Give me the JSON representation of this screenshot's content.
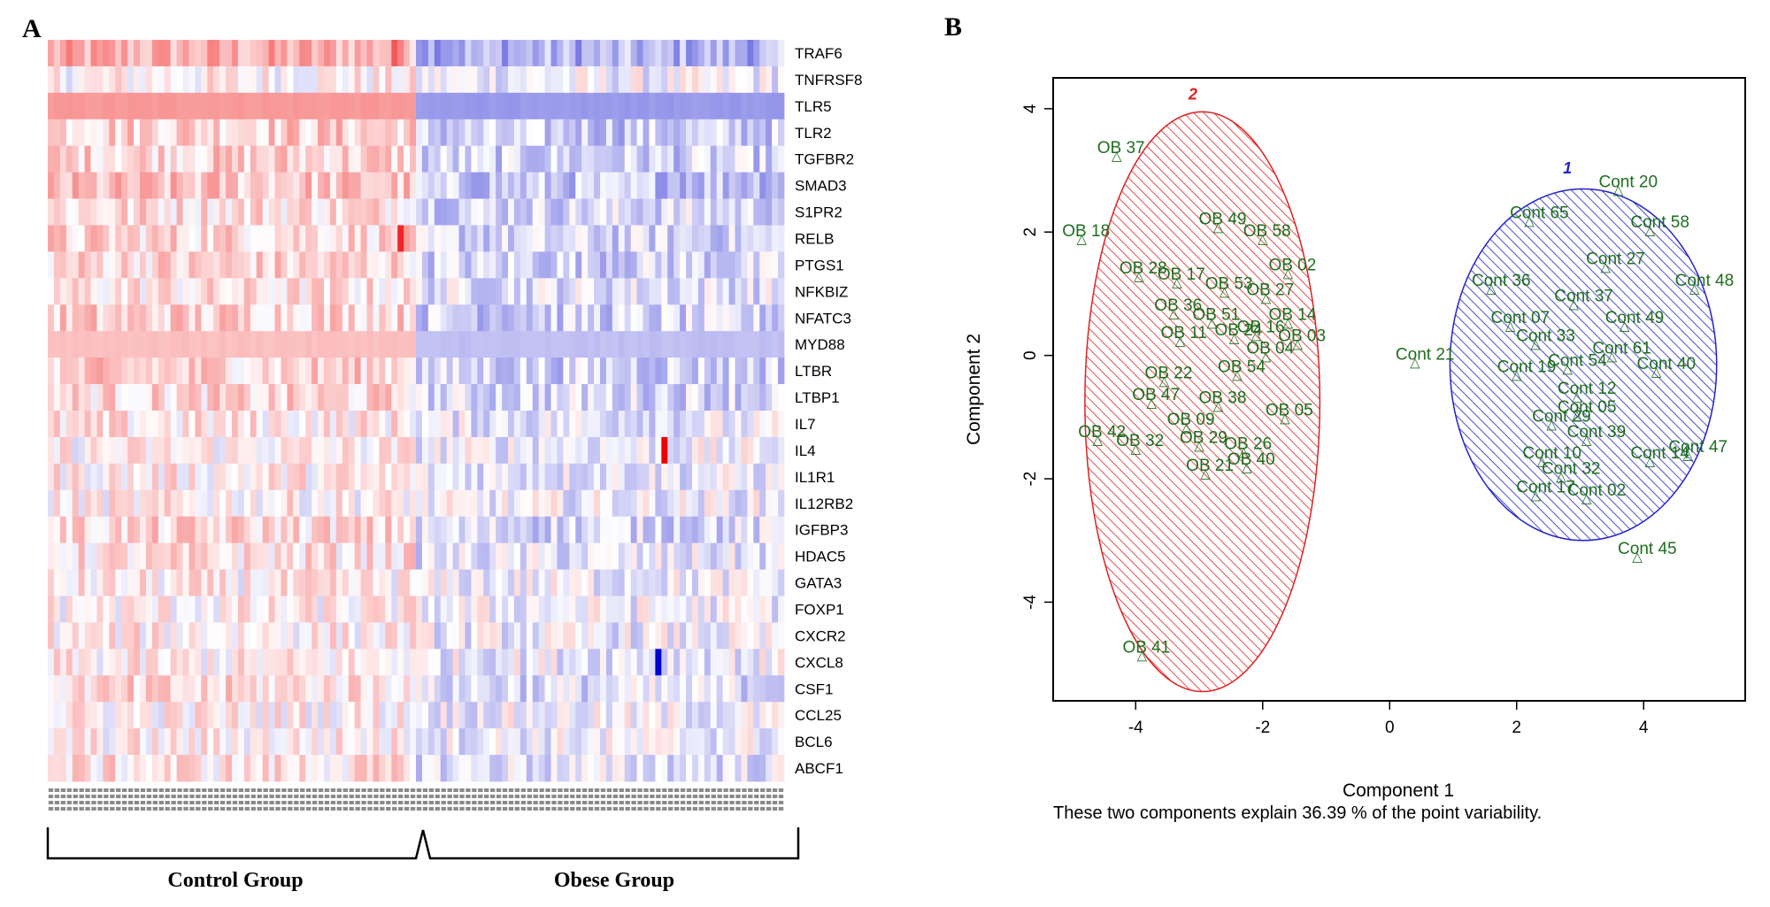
{
  "panels": {
    "a_letter": "A",
    "b_letter": "B"
  },
  "chart_data": [
    {
      "type": "heatmap",
      "panel": "A",
      "genes": [
        "TRAF6",
        "TNFRSF8",
        "TLR5",
        "TLR2",
        "TGFBR2",
        "SMAD3",
        "S1PR2",
        "RELB",
        "PTGS1",
        "NFKBIZ",
        "NFATC3",
        "MYD88",
        "LTBR",
        "LTBP1",
        "IL7",
        "IL4",
        "IL1R1",
        "IL12RB2",
        "IGFBP3",
        "HDAC5",
        "GATA3",
        "FOXP1",
        "CXCR2",
        "CXCL8",
        "CSF1",
        "CCL25",
        "BCL6",
        "ABCF1"
      ],
      "groups": [
        {
          "name": "Control Group",
          "n_samples": 60
        },
        {
          "name": "Obese Group",
          "n_samples": 60
        }
      ],
      "color_scale": {
        "low": "#0000cc",
        "mid": "#ffffff",
        "high": "#ee0000"
      },
      "row_trend": [
        0.3,
        0.05,
        0.4,
        0.2,
        0.18,
        0.22,
        0.14,
        0.16,
        0.16,
        0.1,
        0.18,
        0.25,
        0.17,
        0.14,
        0.08,
        0.05,
        0.07,
        0.05,
        0.14,
        0.1,
        0.05,
        0.04,
        0.06,
        0.05,
        0.12,
        0.05,
        0.05,
        0.1
      ],
      "highlights": [
        {
          "gene": "IL4",
          "group": "Obese Group",
          "sample": 40,
          "value": 1.0
        },
        {
          "gene": "CXCL8",
          "group": "Obese Group",
          "sample": 39,
          "value": -1.0
        },
        {
          "gene": "RELB",
          "group": "Control Group",
          "sample": 57,
          "value": 0.85
        },
        {
          "gene": "TRAF6",
          "group": "Control Group",
          "sample": 56,
          "value": 0.65
        }
      ]
    },
    {
      "type": "scatter",
      "panel": "B",
      "xlabel": "Component 1",
      "ylabel": "Component 2",
      "caption": "These two components explain 36.39 % of the point variability.",
      "xlim": [
        -5.3,
        5.6
      ],
      "ylim": [
        -5.6,
        4.5
      ],
      "xticks": [
        -4,
        -2,
        0,
        2,
        4
      ],
      "yticks": [
        -4,
        -2,
        0,
        2,
        4
      ],
      "marker": "△",
      "point_color": "#1e6e1e",
      "clusters": [
        {
          "label": "2",
          "color": "#dd2222",
          "center": [
            -2.95,
            -0.75
          ],
          "rx": 1.85,
          "ry": 4.7,
          "label_pos": [
            -3.1,
            4.15
          ],
          "points": [
            {
              "l": "OB 37",
              "x": -4.3,
              "y": 3.25
            },
            {
              "l": "OB 18",
              "x": -4.85,
              "y": 1.9
            },
            {
              "l": "OB 49",
              "x": -2.7,
              "y": 2.1
            },
            {
              "l": "OB 58",
              "x": -2.0,
              "y": 1.9
            },
            {
              "l": "OB 02",
              "x": -1.6,
              "y": 1.35
            },
            {
              "l": "OB 28",
              "x": -3.95,
              "y": 1.3
            },
            {
              "l": "OB 17",
              "x": -3.35,
              "y": 1.2
            },
            {
              "l": "OB 53",
              "x": -2.6,
              "y": 1.05
            },
            {
              "l": "OB 27",
              "x": -1.95,
              "y": 0.95
            },
            {
              "l": "OB 14",
              "x": -1.6,
              "y": 0.55
            },
            {
              "l": "OB 03",
              "x": -1.45,
              "y": 0.2
            },
            {
              "l": "OB 04",
              "x": -1.95,
              "y": 0.0
            },
            {
              "l": "OB 54",
              "x": -2.4,
              "y": -0.3
            },
            {
              "l": "OB 38",
              "x": -2.7,
              "y": -0.8
            },
            {
              "l": "OB 05",
              "x": -1.65,
              "y": -1.0
            },
            {
              "l": "OB 09",
              "x": -3.2,
              "y": -1.15
            },
            {
              "l": "OB 42",
              "x": -4.6,
              "y": -1.35
            },
            {
              "l": "OB 32",
              "x": -4.0,
              "y": -1.5
            },
            {
              "l": "OB 29",
              "x": -3.0,
              "y": -1.45
            },
            {
              "l": "OB 26",
              "x": -2.3,
              "y": -1.55
            },
            {
              "l": "OB 40",
              "x": -2.25,
              "y": -1.8
            },
            {
              "l": "OB 21",
              "x": -2.9,
              "y": -1.9
            },
            {
              "l": "OB 41",
              "x": -3.9,
              "y": -4.85
            },
            {
              "l": "OB 47",
              "x": -3.75,
              "y": -0.75
            },
            {
              "l": "OB 22",
              "x": -3.55,
              "y": -0.4
            },
            {
              "l": "OB 11",
              "x": -3.3,
              "y": 0.25
            },
            {
              "l": "OB 36",
              "x": -3.4,
              "y": 0.7
            },
            {
              "l": "OB 51",
              "x": -2.8,
              "y": 0.55
            },
            {
              "l": "OB 24",
              "x": -2.45,
              "y": 0.3
            },
            {
              "l": "OB 16",
              "x": -2.1,
              "y": 0.35
            }
          ]
        },
        {
          "label": "1",
          "color": "#2222cc",
          "center": [
            3.05,
            -0.15
          ],
          "rx": 2.1,
          "ry": 2.85,
          "label_pos": [
            2.8,
            2.95
          ],
          "points": [
            {
              "l": "Cont 20",
              "x": 3.6,
              "y": 2.7
            },
            {
              "l": "Cont 65",
              "x": 2.2,
              "y": 2.2
            },
            {
              "l": "Cont 58",
              "x": 4.1,
              "y": 2.05
            },
            {
              "l": "Cont 27",
              "x": 3.4,
              "y": 1.45
            },
            {
              "l": "Cont 48",
              "x": 4.8,
              "y": 1.1
            },
            {
              "l": "Cont 36",
              "x": 1.6,
              "y": 1.1
            },
            {
              "l": "Cont 37",
              "x": 2.9,
              "y": 0.85
            },
            {
              "l": "Cont 49",
              "x": 3.7,
              "y": 0.5
            },
            {
              "l": "Cont 21",
              "x": 0.4,
              "y": -0.1
            },
            {
              "l": "Cont 40",
              "x": 4.2,
              "y": -0.25
            },
            {
              "l": "Cont 12",
              "x": 2.95,
              "y": -0.65
            },
            {
              "l": "Cont 05",
              "x": 2.95,
              "y": -0.95
            },
            {
              "l": "Cont 29",
              "x": 2.55,
              "y": -1.1
            },
            {
              "l": "Cont 39",
              "x": 3.1,
              "y": -1.35
            },
            {
              "l": "Cont 47",
              "x": 4.7,
              "y": -1.6
            },
            {
              "l": "Cont 10",
              "x": 2.4,
              "y": -1.7
            },
            {
              "l": "Cont 32",
              "x": 2.7,
              "y": -1.95
            },
            {
              "l": "Cont 17",
              "x": 2.3,
              "y": -2.25
            },
            {
              "l": "Cont 02",
              "x": 3.1,
              "y": -2.3
            },
            {
              "l": "Cont 45",
              "x": 3.9,
              "y": -3.25
            },
            {
              "l": "Cont 14",
              "x": 4.1,
              "y": -1.7
            },
            {
              "l": "Cont 07",
              "x": 1.9,
              "y": 0.5
            },
            {
              "l": "Cont 33",
              "x": 2.3,
              "y": 0.2
            },
            {
              "l": "Cont 54",
              "x": 2.8,
              "y": -0.2
            },
            {
              "l": "Cont 61",
              "x": 3.5,
              "y": 0.0
            },
            {
              "l": "Cont 19",
              "x": 2.0,
              "y": -0.3
            }
          ]
        }
      ]
    }
  ],
  "heatmap_group_labels": {
    "control": "Control Group",
    "obese": "Obese Group"
  }
}
